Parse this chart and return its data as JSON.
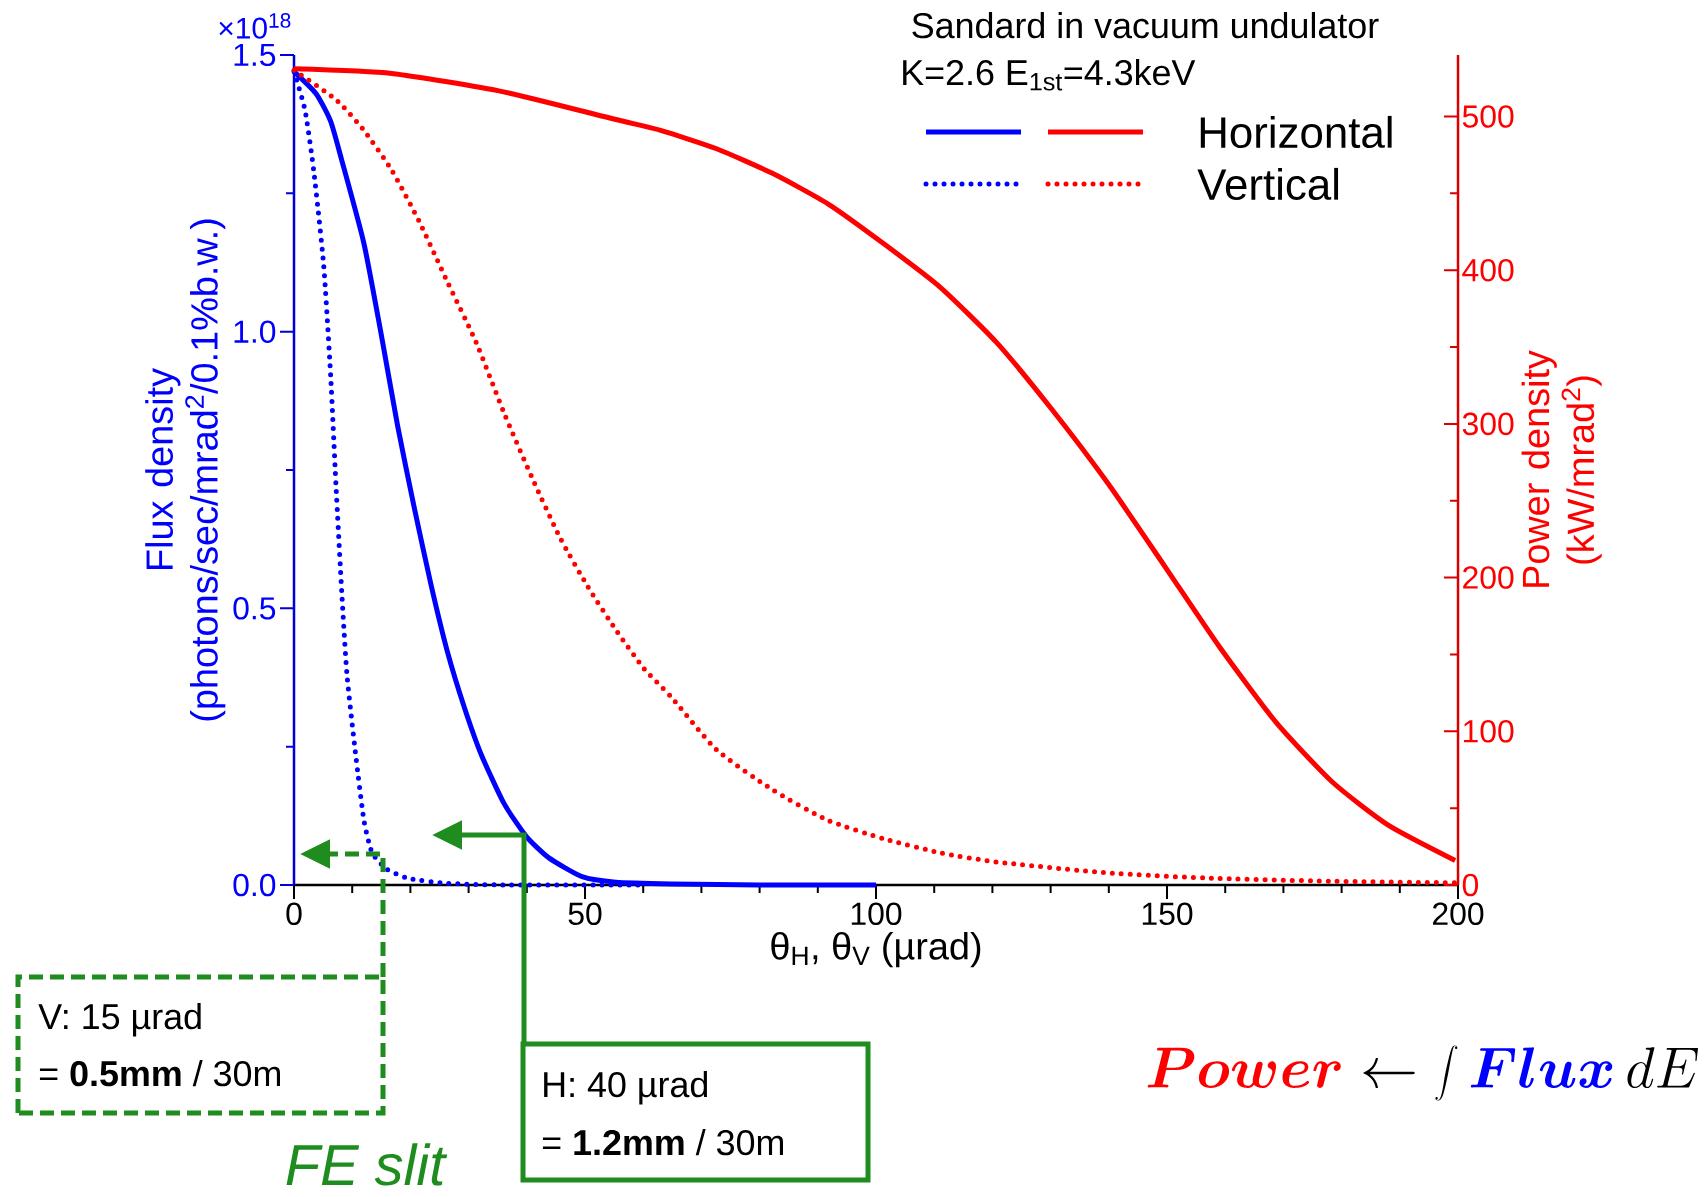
{
  "chart_data": {
    "type": "line",
    "xlabel": "θ$_{H}$, θ$_{V}$ (µrad)",
    "ylabel": "Flux density (photons/sec/mrad$^{2}$/0.1%b.w.)",
    "y2label": "Power density (kW/mrad$^{2}$)",
    "xlim": [
      0,
      200
    ],
    "xticks": [
      0,
      {
        "value": 10,
        "label": null
      },
      {
        "value": 20,
        "label": null
      },
      {
        "value": 30,
        "label": null
      },
      {
        "value": 40,
        "label": null
      },
      50,
      {
        "value": 60,
        "label": null
      },
      {
        "value": 70,
        "label": null
      },
      {
        "value": 80,
        "label": null
      },
      {
        "value": 90,
        "label": null
      },
      100,
      {
        "value": 110,
        "label": null
      },
      {
        "value": 120,
        "label": null
      },
      {
        "value": 130,
        "label": null
      },
      {
        "value": 140,
        "label": null
      },
      150,
      {
        "value": 160,
        "label": null
      },
      {
        "value": 170,
        "label": null
      },
      {
        "value": 180,
        "label": null
      },
      {
        "value": 190,
        "label": null
      },
      200
    ],
    "ylim": [
      0,
      1.5
    ],
    "yticks": [
      {
        "value": 0,
        "label": "0.0"
      },
      {
        "value": 0.25,
        "label": null
      },
      {
        "value": 0.5,
        "label": "0.5"
      },
      {
        "value": 0.75,
        "label": null
      },
      {
        "value": 1.0,
        "label": "1.0"
      },
      {
        "value": 1.25,
        "label": null
      },
      {
        "value": 1.5,
        "label": "1.5"
      }
    ],
    "y2lim": [
      0,
      540
    ],
    "y2ticks": [
      0,
      {
        "value": 50,
        "label": null
      },
      100,
      {
        "value": 150,
        "label": null
      },
      200,
      {
        "value": 250,
        "label": null
      },
      300,
      {
        "value": 350,
        "label": null
      },
      400,
      {
        "value": 450,
        "label": null
      },
      500
    ],
    "legend": "top right",
    "series": [
      {
        "color": "#0000ff",
        "line_style": "solid",
        "x": [
          0,
          3.8,
          6.3,
          8.2,
          12.0,
          14.9,
          17.8,
          20.7,
          23.6,
          26.4,
          29.3,
          32.2,
          36.1,
          39.9,
          43.8,
          49.5,
          55.3,
          64.9,
          80,
          100
        ],
        "values": [
          1.47,
          1.43,
          1.38,
          1.31,
          1.16,
          1.0,
          0.83,
          0.68,
          0.54,
          0.42,
          0.32,
          0.235,
          0.147,
          0.088,
          0.049,
          0.015,
          0.005,
          0.002,
          0,
          0
        ]
      },
      {
        "color": "#0000ff",
        "line_style": "dotted",
        "x": [
          0,
          1.9,
          3.4,
          5.1,
          6.3,
          7.2,
          8.2,
          9.1,
          10.6,
          12.0,
          13.4,
          15.9,
          19.7,
          26.4,
          36,
          60
        ],
        "values": [
          1.47,
          1.4,
          1.29,
          1.12,
          0.92,
          0.725,
          0.53,
          0.38,
          0.235,
          0.118,
          0.059,
          0.029,
          0.012,
          0.003,
          0,
          0
        ]
      },
      {
        "name": "Horizontal",
        "color": "#ff0000",
        "line_style": "solid",
        "axis": "y2",
        "x": [
          0,
          16.8,
          36,
          55.3,
          63,
          72.6,
          82.2,
          91.8,
          101.4,
          111,
          120.7,
          130.3,
          139.9,
          149.5,
          159,
          168.7,
          178.4,
          188,
          199.5
        ],
        "values": [
          531,
          528,
          516,
          498,
          491,
          479,
          463,
          443,
          417,
          389,
          353,
          309,
          261,
          208,
          155,
          106,
          67,
          39,
          16
        ]
      },
      {
        "name": "Vertical",
        "color": "#ff0000",
        "line_style": "dotted",
        "axis": "y2",
        "x": [
          0,
          7.2,
          12,
          16.8,
          21.6,
          26.4,
          31.3,
          36.1,
          40.9,
          45.7,
          50.5,
          55.3,
          60.1,
          64.9,
          72.6,
          82.2,
          91.8,
          101.4,
          111,
          120.7,
          139.9,
          159,
          178,
          199.5
        ],
        "values": [
          530,
          511,
          491,
          465,
          431,
          392,
          353,
          307,
          265,
          226,
          194,
          166,
          141,
          122,
          88,
          62,
          42,
          30,
          21,
          15,
          7.8,
          4.2,
          2.5,
          1.4
        ]
      }
    ],
    "annotations": [
      "Sandard in vacuum undulator",
      "K=2.6 E$_{1st}$=4.3keV",
      "V: 15 µrad",
      "= **0.5mm** / 30m",
      "H: 40 µrad",
      "= **1.2mm** / 30m",
      "FE slit",
      "{\\color{red}\\boldsymbol{Power}} \\leftarrow \\int {\\color{blue}\\boldsymbol{Flux}}\\,dE",
      "×10$^{18}$"
    ]
  }
}
